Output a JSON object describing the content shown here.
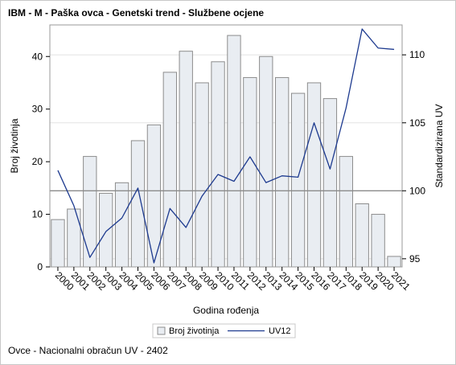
{
  "chart_data": {
    "type": "bar",
    "title": "IBM - M - Paška ovca - Genetski trend - Službene ocjene",
    "xlabel": "Godina rođenja",
    "ylabel": "Broj životinja",
    "y2label": "Standardizirana UV",
    "categories": [
      "2000",
      "2001",
      "2002",
      "2003",
      "2004",
      "2005",
      "2006",
      "2007",
      "2008",
      "2009",
      "2010",
      "2011",
      "2012",
      "2013",
      "2014",
      "2015",
      "2016",
      "2017",
      "2018",
      "2019",
      "2020",
      "2021"
    ],
    "series": [
      {
        "name": "Broj životinja",
        "type": "bar",
        "axis": "left",
        "values": [
          9,
          11,
          21,
          14,
          16,
          24,
          27,
          37,
          41,
          35,
          39,
          44,
          36,
          40,
          36,
          33,
          35,
          32,
          21,
          12,
          10,
          2
        ]
      },
      {
        "name": "UV12",
        "type": "line",
        "axis": "right",
        "values": [
          101.5,
          98.9,
          95.1,
          97.0,
          98.0,
          100.2,
          94.7,
          98.7,
          97.3,
          99.6,
          101.2,
          100.7,
          102.5,
          100.6,
          101.1,
          101.0,
          105.0,
          101.6,
          106.1,
          111.9,
          110.5,
          110.4
        ]
      }
    ],
    "ylim": [
      0,
      46
    ],
    "yticks": [
      0,
      10,
      20,
      30,
      40
    ],
    "y2lim": [
      94.4,
      112.2
    ],
    "y2ticks": [
      95,
      100,
      105,
      110
    ],
    "reference_line_y2": 100,
    "legend_position": "bottom-center",
    "grid": true,
    "colors": {
      "bar_fill": "#e9edf2",
      "bar_stroke": "#8c8c8c",
      "line": "#1d3a8f",
      "reference_line": "#8c8c8c",
      "grid": "#e4e4e4"
    }
  },
  "footnote": "Ovce - Nacionalni obračun UV - 2402"
}
